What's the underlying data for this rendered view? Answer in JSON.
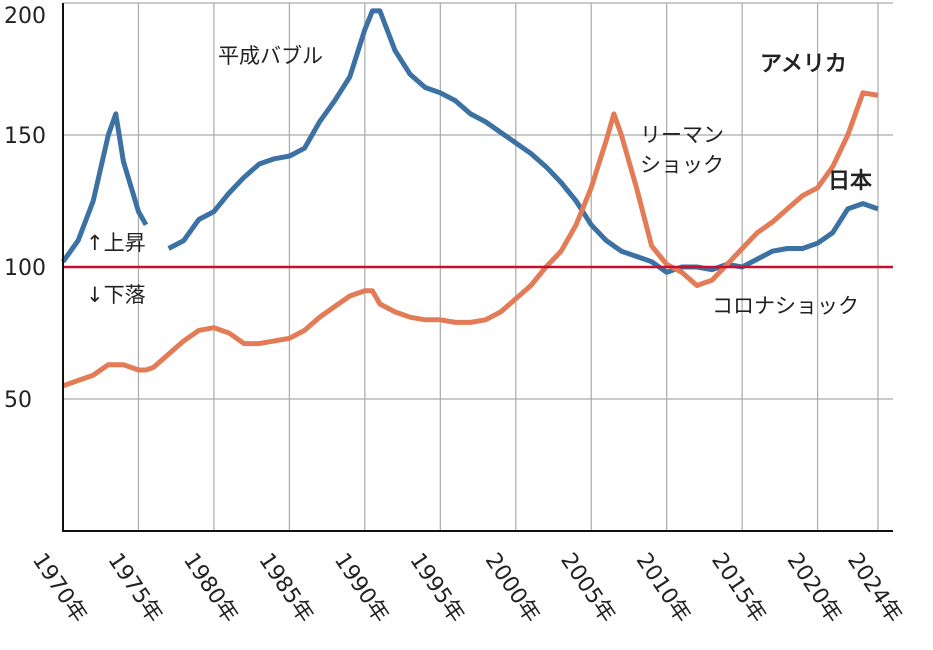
{
  "chart_data": {
    "type": "line",
    "x": [
      1970,
      1971,
      1972,
      1973,
      1973.5,
      1974,
      1975,
      1975.5,
      1976,
      1977,
      1978,
      1979,
      1980,
      1981,
      1982,
      1983,
      1984,
      1985,
      1986,
      1987,
      1988,
      1989,
      1990,
      1990.5,
      1991,
      1992,
      1993,
      1994,
      1995,
      1996,
      1997,
      1998,
      1999,
      2000,
      2001,
      2002,
      2003,
      2004,
      2005,
      2006,
      2006.5,
      2007,
      2008,
      2009,
      2010,
      2011,
      2012,
      2013,
      2014,
      2015,
      2016,
      2017,
      2018,
      2019,
      2020,
      2021,
      2022,
      2023,
      2024
    ],
    "series": [
      {
        "name": "日本",
        "color": "#3b72a3",
        "values": [
          102,
          110,
          125,
          150,
          158,
          140,
          121,
          116,
          null,
          107,
          110,
          118,
          121,
          128,
          134,
          139,
          141,
          142,
          145,
          155,
          163,
          172,
          190,
          197,
          197,
          182,
          173,
          168,
          166,
          163,
          158,
          155,
          151,
          147,
          143,
          138,
          132,
          125,
          116,
          110,
          108,
          106,
          104,
          102,
          98,
          100,
          100,
          99,
          101,
          100,
          103,
          106,
          107,
          107,
          109,
          113,
          122,
          124,
          122
        ]
      },
      {
        "name": "アメリカ",
        "color": "#e27b56",
        "values": [
          55,
          57,
          59,
          63,
          63,
          63,
          61,
          61,
          62,
          67,
          72,
          76,
          77,
          75,
          71,
          71,
          72,
          73,
          76,
          81,
          85,
          89,
          91,
          91,
          86,
          83,
          81,
          80,
          80,
          79,
          79,
          80,
          83,
          88,
          93,
          100,
          106,
          116,
          130,
          148,
          158,
          150,
          130,
          108,
          101,
          98,
          93,
          95,
          101,
          107,
          113,
          117,
          122,
          127,
          130,
          138,
          150,
          166,
          165
        ]
      }
    ],
    "xlim": [
      1970,
      2024
    ],
    "xticks": [
      {
        "value": 1970,
        "label": "1970年"
      },
      {
        "value": 1975,
        "label": "1975年"
      },
      {
        "value": 1980,
        "label": "1980年"
      },
      {
        "value": 1985,
        "label": "1985年"
      },
      {
        "value": 1990,
        "label": "1990年"
      },
      {
        "value": 1995,
        "label": "1995年"
      },
      {
        "value": 2000,
        "label": "2000年"
      },
      {
        "value": 2005,
        "label": "2005年"
      },
      {
        "value": 2010,
        "label": "2010年"
      },
      {
        "value": 2015,
        "label": "2015年"
      },
      {
        "value": 2020,
        "label": "2020年"
      },
      {
        "value": 2024,
        "label": "2024年"
      }
    ],
    "ylim": [
      0,
      200
    ],
    "yticks": [
      50,
      100,
      150,
      200
    ],
    "reference_line": {
      "value": 100,
      "color": "#c8102e"
    },
    "grid": true,
    "annotations": [
      "平成バブル",
      "リーマン",
      "ショック",
      "コロナショック",
      "↑上昇",
      "↓下落"
    ]
  }
}
